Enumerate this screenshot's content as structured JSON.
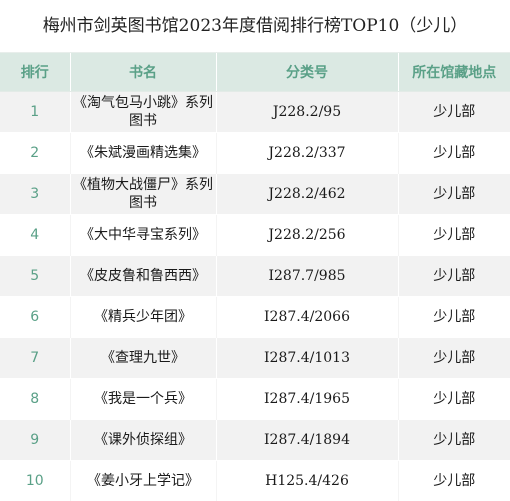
{
  "page": {
    "title": "梅州市剑英图书馆2023年度借阅排行榜TOP10（少儿）"
  },
  "table": {
    "headers": {
      "rank": "排行",
      "title": "书名",
      "call_number": "分类号",
      "location": "所在馆藏地点"
    },
    "rows": [
      {
        "rank": "1",
        "title": "《淘气包马小跳》系列图书",
        "call_number": "J228.2/95",
        "location": "少儿部"
      },
      {
        "rank": "2",
        "title": "《朱斌漫画精选集》",
        "call_number": "J228.2/337",
        "location": "少儿部"
      },
      {
        "rank": "3",
        "title": "《植物大战僵尸》系列图书",
        "call_number": "J228.2/462",
        "location": "少儿部"
      },
      {
        "rank": "4",
        "title": "《大中华寻宝系列》",
        "call_number": "J228.2/256",
        "location": "少儿部"
      },
      {
        "rank": "5",
        "title": "《皮皮鲁和鲁西西》",
        "call_number": "I287.7/985",
        "location": "少儿部"
      },
      {
        "rank": "6",
        "title": "《精兵少年团》",
        "call_number": "I287.4/2066",
        "location": "少儿部"
      },
      {
        "rank": "7",
        "title": "《查理九世》",
        "call_number": "I287.4/1013",
        "location": "少儿部"
      },
      {
        "rank": "8",
        "title": "《我是一个兵》",
        "call_number": "I287.4/1965",
        "location": "少儿部"
      },
      {
        "rank": "9",
        "title": "《课外侦探组》",
        "call_number": "I287.4/1894",
        "location": "少儿部"
      },
      {
        "rank": "10",
        "title": "《姜小牙上学记》",
        "call_number": "H125.4/426",
        "location": "少儿部"
      }
    ]
  }
}
